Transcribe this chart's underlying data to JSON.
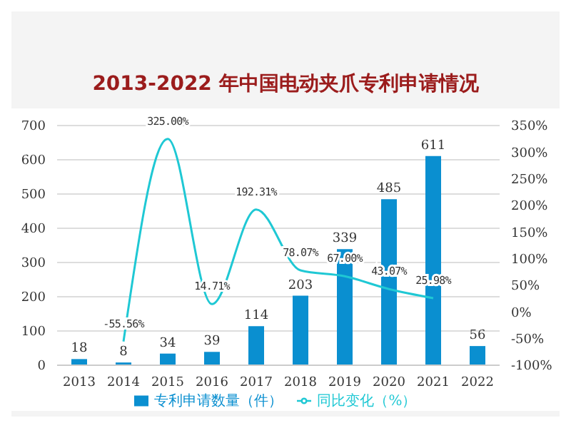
{
  "chart_data": {
    "type": "bar",
    "title": "2013-2022 年中国电动夹爪专利申请情况",
    "categories": [
      "2013",
      "2014",
      "2015",
      "2016",
      "2017",
      "2018",
      "2019",
      "2020",
      "2021",
      "2022"
    ],
    "series": [
      {
        "name": "专利申请数量（件）",
        "color": "#0a8fd0",
        "values": [
          18,
          8,
          34,
          39,
          114,
          203,
          339,
          485,
          611,
          56
        ],
        "data_labels": true
      },
      {
        "name": "同比变化（%）",
        "type": "line",
        "axis": "y2",
        "color": "#1fc8d4",
        "values": [
          null,
          -55.56,
          325.0,
          14.71,
          192.31,
          78.07,
          67.0,
          43.07,
          25.98,
          null
        ],
        "value_labels": [
          null,
          "-55.56%",
          "325.00%",
          "14.71%",
          "192.31%",
          "78.07%",
          "67.00%",
          "43.07%",
          "25.98%",
          null
        ],
        "marker": "none"
      }
    ],
    "ylim": [
      0,
      700
    ],
    "yticks": [
      0,
      100,
      200,
      300,
      400,
      500,
      600,
      700
    ],
    "y2lim": [
      -100,
      350
    ],
    "y2ticks": [
      {
        "value": -100,
        "label": "-100%"
      },
      {
        "value": -50,
        "label": "-50%"
      },
      {
        "value": 0,
        "label": "0%"
      },
      {
        "value": 50,
        "label": "50%"
      },
      {
        "value": 100,
        "label": "100%"
      },
      {
        "value": 150,
        "label": "150%"
      },
      {
        "value": 200,
        "label": "200%"
      },
      {
        "value": 250,
        "label": "250%"
      },
      {
        "value": 300,
        "label": "300%"
      },
      {
        "value": 350,
        "label": "350%"
      }
    ],
    "grid": "y",
    "legend": "bottom"
  }
}
